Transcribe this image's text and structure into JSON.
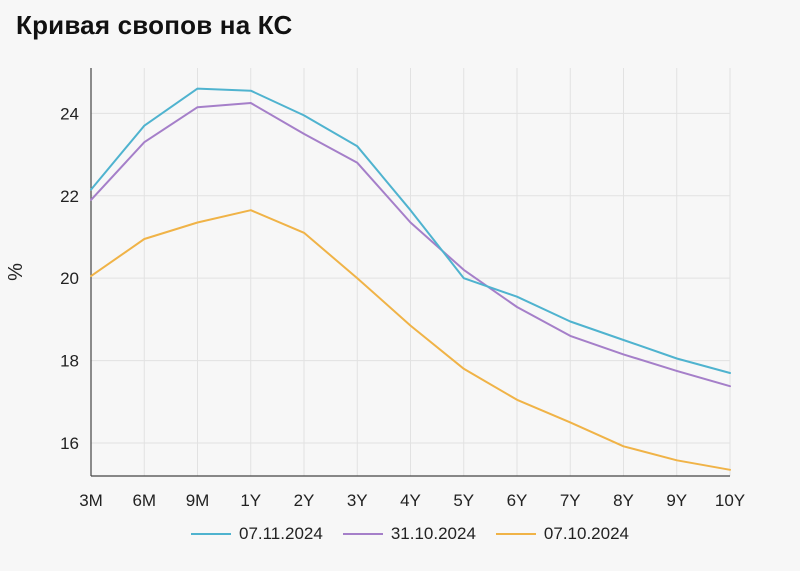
{
  "chart_data": {
    "type": "line",
    "title": "Кривая свопов на КС",
    "xlabel": "",
    "ylabel": "%",
    "categories": [
      "3M",
      "6M",
      "9M",
      "1Y",
      "2Y",
      "3Y",
      "4Y",
      "5Y",
      "6Y",
      "7Y",
      "8Y",
      "9Y",
      "10Y"
    ],
    "yticks": [
      16,
      18,
      20,
      22,
      24
    ],
    "ylim": [
      15.2,
      25.1
    ],
    "grid": true,
    "legend_position": "bottom",
    "series": [
      {
        "name": "07.11.2024",
        "color": "#4fb3cf",
        "values": [
          22.15,
          23.7,
          24.6,
          24.55,
          23.95,
          23.2,
          21.65,
          20.0,
          19.55,
          18.95,
          18.5,
          18.05,
          17.7
        ]
      },
      {
        "name": "31.10.2024",
        "color": "#a57fc9",
        "values": [
          21.9,
          23.3,
          24.15,
          24.25,
          23.5,
          22.8,
          21.35,
          20.2,
          19.3,
          18.6,
          18.15,
          17.75,
          17.38
        ]
      },
      {
        "name": "07.10.2024",
        "color": "#f0b347",
        "values": [
          20.05,
          20.95,
          21.35,
          21.65,
          21.1,
          20.0,
          18.85,
          17.8,
          17.05,
          16.5,
          15.92,
          15.58,
          15.35
        ]
      }
    ]
  }
}
